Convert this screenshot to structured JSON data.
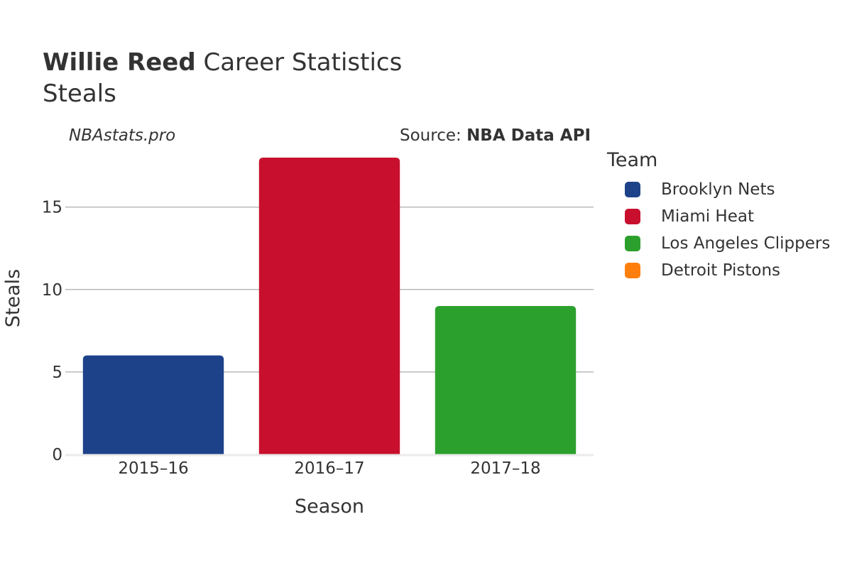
{
  "title": {
    "bold": "Willie Reed",
    "rest": "Career Statistics",
    "subtitle": "Steals"
  },
  "credit_left": "NBAstats.pro",
  "credit_right": {
    "prefix": "Source: ",
    "bold": "NBA Data API"
  },
  "legend_title": "Team",
  "legend": [
    {
      "name": "Brooklyn Nets",
      "color": "#1d428a"
    },
    {
      "name": "Miami Heat",
      "color": "#c8102e"
    },
    {
      "name": "Los Angeles Clippers",
      "color": "#2ca02c"
    },
    {
      "name": "Detroit Pistons",
      "color": "#ff7f0e"
    }
  ],
  "chart_data": {
    "type": "bar",
    "title": "Willie Reed Career Statistics",
    "subtitle": "Steals",
    "xlabel": "Season",
    "ylabel": "Steals",
    "categories": [
      "2015–16",
      "2016–17",
      "2017–18"
    ],
    "values": [
      6,
      18,
      9
    ],
    "bar_teams": [
      "Brooklyn Nets",
      "Miami Heat",
      "Los Angeles Clippers"
    ],
    "bar_colors": [
      "#1d428a",
      "#c8102e",
      "#2ca02c"
    ],
    "yticks": [
      0,
      5,
      10,
      15
    ],
    "ylim": [
      0,
      18.95
    ],
    "grid": true,
    "legend_position": "right"
  }
}
